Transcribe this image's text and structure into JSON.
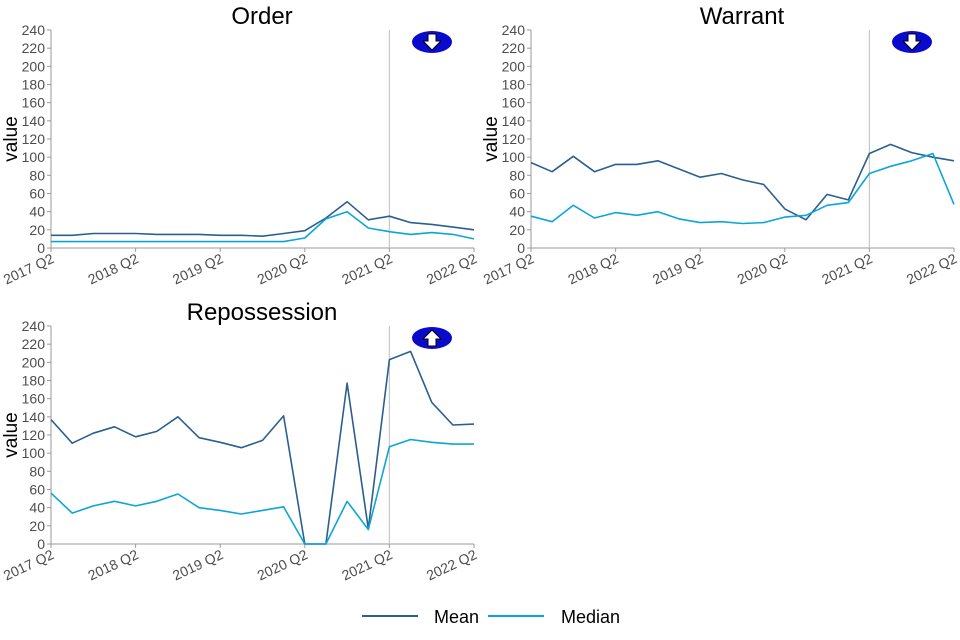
{
  "chart_data": [
    {
      "type": "line",
      "title": "Order",
      "ylabel": "value",
      "ylim": [
        0,
        240
      ],
      "yticks": [
        "0",
        "20",
        "40",
        "60",
        "80",
        "100",
        "120",
        "140",
        "160",
        "180",
        "200",
        "220",
        "240"
      ],
      "x_tick_labels": [
        "2017 Q2",
        "2018 Q2",
        "2019 Q2",
        "2020 Q2",
        "2021 Q2",
        "2022 Q2"
      ],
      "x": [
        "2017 Q2",
        "2017 Q3",
        "2017 Q4",
        "2018 Q1",
        "2018 Q2",
        "2018 Q3",
        "2018 Q4",
        "2019 Q1",
        "2019 Q2",
        "2019 Q3",
        "2019 Q4",
        "2020 Q1",
        "2020 Q2",
        "2020 Q3",
        "2020 Q4",
        "2021 Q1",
        "2021 Q2",
        "2021 Q3",
        "2021 Q4",
        "2022 Q1",
        "2022 Q2"
      ],
      "vline": "2021 Q2",
      "trend_icon": "down-arrow-icon",
      "series": [
        {
          "name": "Mean",
          "values": [
            14,
            14,
            16,
            16,
            16,
            15,
            15,
            15,
            14,
            14,
            13,
            16,
            19,
            33,
            51,
            31,
            35,
            28,
            26,
            23,
            20
          ]
        },
        {
          "name": "Median",
          "values": [
            7,
            7,
            7,
            7,
            7,
            7,
            7,
            7,
            7,
            7,
            7,
            7,
            11,
            32,
            40,
            22,
            18,
            15,
            17,
            15,
            10
          ]
        }
      ]
    },
    {
      "type": "line",
      "title": "Warrant",
      "ylabel": "value",
      "ylim": [
        0,
        240
      ],
      "yticks": [
        "0",
        "20",
        "40",
        "60",
        "80",
        "100",
        "120",
        "140",
        "160",
        "180",
        "200",
        "220",
        "240"
      ],
      "x_tick_labels": [
        "2017 Q2",
        "2018 Q2",
        "2019 Q2",
        "2020 Q2",
        "2021 Q2",
        "2022 Q2"
      ],
      "x": [
        "2017 Q2",
        "2017 Q3",
        "2017 Q4",
        "2018 Q1",
        "2018 Q2",
        "2018 Q3",
        "2018 Q4",
        "2019 Q1",
        "2019 Q2",
        "2019 Q3",
        "2019 Q4",
        "2020 Q1",
        "2020 Q2",
        "2020 Q3",
        "2020 Q4",
        "2021 Q1",
        "2021 Q2",
        "2021 Q3",
        "2021 Q4",
        "2022 Q1",
        "2022 Q2"
      ],
      "vline": "2021 Q2",
      "trend_icon": "down-arrow-icon",
      "series": [
        {
          "name": "Mean",
          "values": [
            94,
            84,
            101,
            84,
            92,
            92,
            96,
            87,
            78,
            82,
            75,
            70,
            43,
            31,
            59,
            53,
            104,
            114,
            105,
            100,
            96
          ]
        },
        {
          "name": "Median",
          "values": [
            35,
            29,
            47,
            33,
            39,
            36,
            40,
            32,
            28,
            29,
            27,
            28,
            34,
            36,
            47,
            50,
            82,
            90,
            96,
            104,
            48
          ]
        }
      ]
    },
    {
      "type": "line",
      "title": "Repossession",
      "ylabel": "value",
      "ylim": [
        0,
        240
      ],
      "yticks": [
        "0",
        "20",
        "40",
        "60",
        "80",
        "100",
        "120",
        "140",
        "160",
        "180",
        "200",
        "220",
        "240"
      ],
      "x_tick_labels": [
        "2017 Q2",
        "2018 Q2",
        "2019 Q2",
        "2020 Q2",
        "2021 Q2",
        "2022 Q2"
      ],
      "x": [
        "2017 Q2",
        "2017 Q3",
        "2017 Q4",
        "2018 Q1",
        "2018 Q2",
        "2018 Q3",
        "2018 Q4",
        "2019 Q1",
        "2019 Q2",
        "2019 Q3",
        "2019 Q4",
        "2020 Q1",
        "2020 Q2",
        "2020 Q3",
        "2020 Q4",
        "2021 Q1",
        "2021 Q2",
        "2021 Q3",
        "2021 Q4",
        "2022 Q1",
        "2022 Q2"
      ],
      "vline": "2021 Q2",
      "trend_icon": "up-arrow-icon",
      "series": [
        {
          "name": "Mean",
          "values": [
            137,
            111,
            122,
            129,
            118,
            124,
            140,
            117,
            112,
            106,
            114,
            141,
            0,
            0,
            177,
            17,
            203,
            212,
            156,
            131,
            132
          ]
        },
        {
          "name": "Median",
          "values": [
            56,
            34,
            42,
            47,
            42,
            47,
            55,
            40,
            37,
            33,
            37,
            41,
            0,
            0,
            47,
            16,
            107,
            115,
            112,
            110,
            110
          ]
        }
      ]
    }
  ],
  "legend": {
    "placement": "bottom",
    "items": [
      {
        "label": "Mean",
        "color": "#2a5f8f"
      },
      {
        "label": "Median",
        "color": "#0ba6d6"
      }
    ]
  },
  "colors": {
    "mean": "#2a5f8f",
    "median": "#0ba6d6",
    "icon_fill": "#0a0acc",
    "vline": "#c8c8c8",
    "axis": "#9a9a9a"
  }
}
